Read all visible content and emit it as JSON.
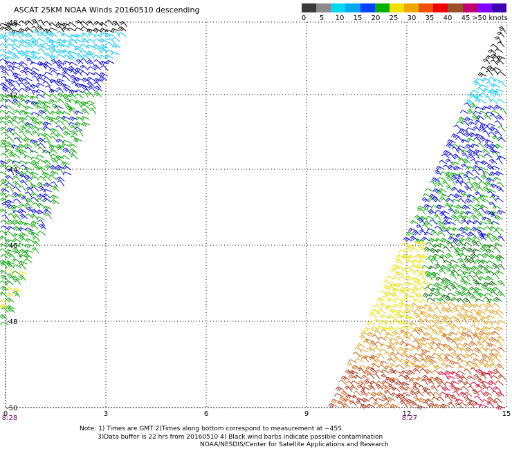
{
  "title": "ASCAT 25KM NOAA Winds 20160510 descending",
  "scale": {
    "labels": [
      "0",
      "5",
      "10",
      "15",
      "20",
      "25",
      "30",
      "35",
      "40",
      "45",
      ">50 knots"
    ],
    "colors": [
      "#3a3a3a",
      "#8a8a8a",
      "#00d8f0",
      "#00a8f0",
      "#0040ff",
      "#00b000",
      "#f0e000",
      "#f0a800",
      "#f05000",
      "#f00000",
      "#9a5028",
      "#c00070",
      "#8000ff",
      "#4000b0"
    ]
  },
  "lat_labels": [
    "-40",
    "-42",
    "-44",
    "-46",
    "-48",
    "-50"
  ],
  "lon_labels": [
    "0",
    "3",
    "6",
    "9",
    "12",
    "15"
  ],
  "time_labels": [
    "8:28",
    "8:27"
  ],
  "notes": {
    "line1": "Note: 1) Times are GMT 2)Times along bottom correspond to measurement at −45S",
    "line2": "3)Data buffer is 22 hrs from 20160510 4) Black wind barbs indicate possible contamination",
    "line3": "NOAA/NESDIS/Center for Satellite Applications and Research"
  },
  "barb_colors": {
    "calm": "#000000",
    "light": "#00c8ff",
    "moderate": "#0000cc",
    "fresh": "#00a000",
    "dark_green": "#006000",
    "strong": "#e8e000",
    "gale": "#e0a020",
    "orange": "#c86018",
    "brown": "#a02810",
    "red": "#d00030"
  }
}
